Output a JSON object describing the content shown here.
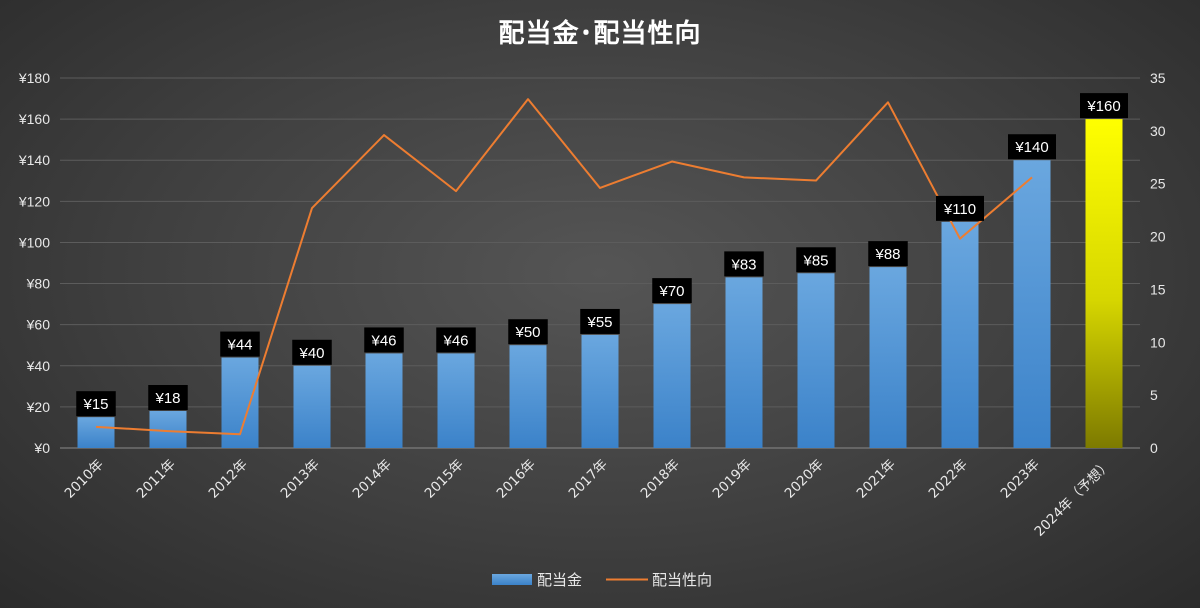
{
  "chart_data": {
    "type": "bar",
    "title": "配当金･配当性向",
    "categories": [
      "2010年",
      "2011年",
      "2012年",
      "2013年",
      "2014年",
      "2015年",
      "2016年",
      "2017年",
      "2018年",
      "2019年",
      "2020年",
      "2021年",
      "2022年",
      "2023年",
      "2024年（予想）"
    ],
    "series": [
      {
        "name": "配当金",
        "type": "bar",
        "axis": "left",
        "values": [
          15,
          18,
          44,
          40,
          46,
          46,
          50,
          55,
          70,
          83,
          85,
          88,
          110,
          140,
          160
        ],
        "labels": [
          "¥15",
          "¥18",
          "¥44",
          "¥40",
          "¥46",
          "¥46",
          "¥50",
          "¥55",
          "¥70",
          "¥83",
          "¥85",
          "¥88",
          "¥110",
          "¥140",
          "¥160"
        ],
        "color": "#5b9bd5",
        "forecast_color": "#ffff00"
      },
      {
        "name": "配当性向",
        "type": "line",
        "axis": "right",
        "values": [
          2.0,
          1.6,
          1.3,
          22.7,
          29.6,
          24.3,
          33.0,
          24.6,
          27.1,
          25.6,
          25.3,
          32.7,
          19.8,
          25.6,
          null
        ],
        "color": "#ed7d31"
      }
    ],
    "y_left": {
      "range": [
        0,
        180
      ],
      "ticks": [
        "¥0",
        "¥20",
        "¥40",
        "¥60",
        "¥80",
        "¥100",
        "¥120",
        "¥140",
        "¥160",
        "¥180"
      ]
    },
    "y_right": {
      "range": [
        0,
        35
      ],
      "ticks": [
        "0",
        "5",
        "10",
        "15",
        "20",
        "25",
        "30",
        "35"
      ]
    },
    "grid": true,
    "legend": "bottom-center"
  }
}
